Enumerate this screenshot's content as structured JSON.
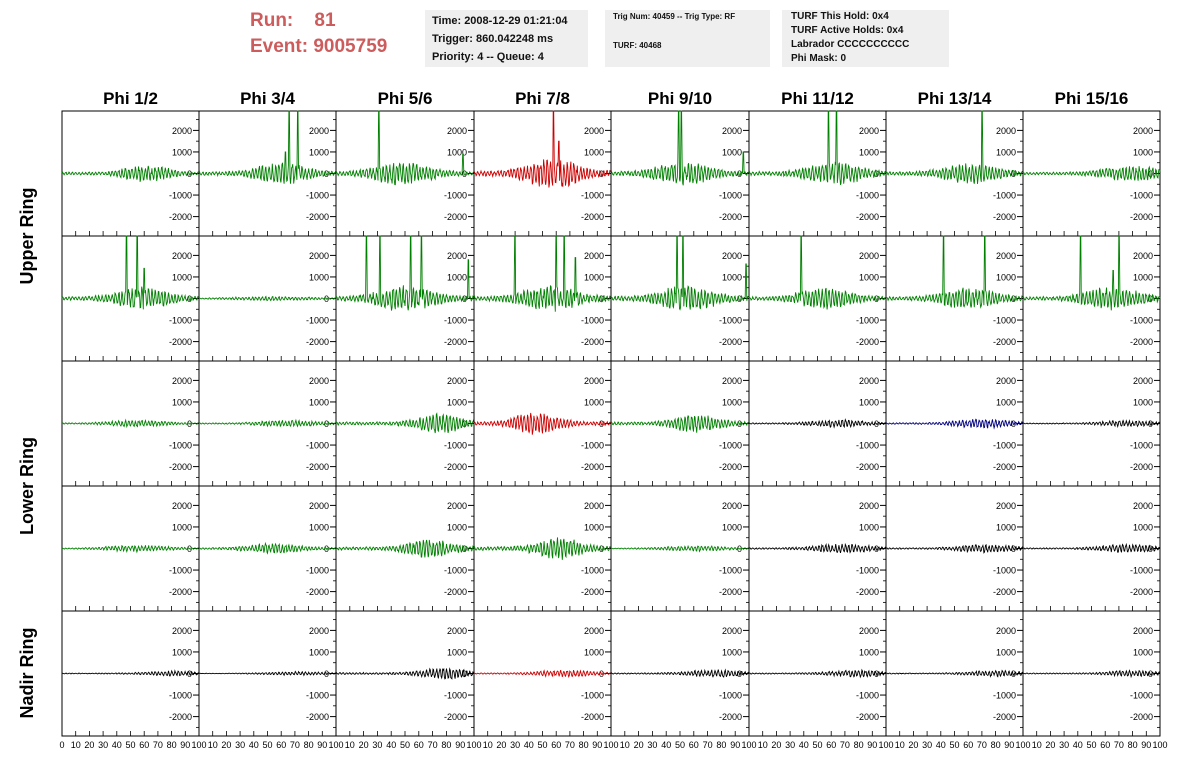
{
  "header": {
    "run_label": "Run:",
    "run_value": "81",
    "event_label": "Event:",
    "event_value": "9005759",
    "time_line": "Time: 2008-12-29 01:21:04",
    "trigger_line": "Trigger: 860.042248 ms",
    "priority_line": "Priority: 4 -- Queue: 4",
    "trig_num_line": "Trig Num: 40459 -- Trig Type: RF",
    "turf_line": "TURF: 40468",
    "turf_hold_line": "TURF This Hold: 0x4",
    "turf_active_line": "TURF Active Holds: 0x4",
    "labrador_line": "Labrador CCCCCCCCCC",
    "phi_mask_line": "Phi Mask: 0"
  },
  "chart_data": {
    "type": "line",
    "columns": [
      "Phi 1/2",
      "Phi 3/4",
      "Phi 5/6",
      "Phi 7/8",
      "Phi 9/10",
      "Phi 11/12",
      "Phi 13/14",
      "Phi 15/16"
    ],
    "row_groups": [
      "Upper Ring",
      "Lower Ring",
      "Nadir Ring"
    ],
    "x_ticks": [
      0,
      10,
      20,
      30,
      40,
      50,
      60,
      70,
      80,
      90,
      100
    ],
    "x_tick_labels_first": "0",
    "x_range": [
      0,
      100
    ],
    "y_ticks": [
      2000,
      1000,
      0,
      -1000,
      -2000
    ],
    "y_range": [
      -2900,
      2900
    ],
    "colors": {
      "green": "#008000",
      "red": "#cc0000",
      "black": "#000000",
      "blue": "#000080"
    },
    "panels": [
      [
        {
          "color": "green",
          "amp": 380,
          "center": 62,
          "width": 32,
          "spikes": []
        },
        {
          "color": "green",
          "amp": 480,
          "center": 60,
          "width": 36,
          "spikes": [
            [
              66,
              2900
            ],
            [
              72,
              2900
            ],
            [
              63,
              1000
            ]
          ]
        },
        {
          "color": "green",
          "amp": 520,
          "center": 48,
          "width": 40,
          "spikes": [
            [
              31,
              2900
            ],
            [
              92,
              900
            ]
          ]
        },
        {
          "color": "red",
          "amp": 700,
          "center": 58,
          "width": 36,
          "spikes": [
            [
              58,
              2900
            ],
            [
              62,
              1500
            ]
          ]
        },
        {
          "color": "green",
          "amp": 520,
          "center": 52,
          "width": 38,
          "spikes": [
            [
              49,
              2900
            ],
            [
              51,
              2900
            ],
            [
              96,
              1000
            ]
          ]
        },
        {
          "color": "green",
          "amp": 520,
          "center": 62,
          "width": 38,
          "spikes": [
            [
              58,
              2900
            ],
            [
              64,
              2900
            ]
          ]
        },
        {
          "color": "green",
          "amp": 440,
          "center": 62,
          "width": 40,
          "spikes": [
            [
              70,
              2900
            ]
          ]
        },
        {
          "color": "green",
          "amp": 330,
          "center": 80,
          "width": 45,
          "spikes": []
        }
      ],
      [
        {
          "color": "green",
          "amp": 520,
          "center": 58,
          "width": 36,
          "spikes": [
            [
              47,
              2900
            ],
            [
              55,
              2900
            ],
            [
              60,
              1400
            ]
          ]
        },
        {
          "color": "green",
          "amp": 90,
          "center": 55,
          "width": 60,
          "spikes": []
        },
        {
          "color": "green",
          "amp": 560,
          "center": 50,
          "width": 40,
          "spikes": [
            [
              22,
              2900
            ],
            [
              32,
              2900
            ],
            [
              54,
              2900
            ],
            [
              62,
              2900
            ],
            [
              96,
              1800
            ]
          ]
        },
        {
          "color": "green",
          "amp": 560,
          "center": 55,
          "width": 40,
          "spikes": [
            [
              30,
              2900
            ],
            [
              60,
              2900
            ],
            [
              66,
              2900
            ],
            [
              74,
              1900
            ]
          ]
        },
        {
          "color": "green",
          "amp": 560,
          "center": 55,
          "width": 40,
          "spikes": [
            [
              48,
              2900
            ],
            [
              52,
              2900
            ],
            [
              98,
              1600
            ]
          ]
        },
        {
          "color": "green",
          "amp": 460,
          "center": 55,
          "width": 40,
          "spikes": [
            [
              38,
              2900
            ]
          ]
        },
        {
          "color": "green",
          "amp": 460,
          "center": 60,
          "width": 40,
          "spikes": [
            [
              42,
              2900
            ],
            [
              72,
              2900
            ]
          ]
        },
        {
          "color": "green",
          "amp": 480,
          "center": 65,
          "width": 40,
          "spikes": [
            [
              42,
              2900
            ],
            [
              70,
              2900
            ],
            [
              66,
              1300
            ]
          ]
        }
      ],
      [
        {
          "color": "green",
          "amp": 140,
          "center": 55,
          "width": 45,
          "spikes": []
        },
        {
          "color": "green",
          "amp": 140,
          "center": 65,
          "width": 45,
          "spikes": []
        },
        {
          "color": "green",
          "amp": 420,
          "center": 75,
          "width": 32,
          "spikes": []
        },
        {
          "color": "red",
          "amp": 480,
          "center": 45,
          "width": 32,
          "spikes": []
        },
        {
          "color": "green",
          "amp": 400,
          "center": 62,
          "width": 32,
          "spikes": []
        },
        {
          "color": "black",
          "amp": 160,
          "center": 65,
          "width": 40,
          "spikes": []
        },
        {
          "color": "blue",
          "amp": 200,
          "center": 70,
          "width": 40,
          "spikes": []
        },
        {
          "color": "black",
          "amp": 130,
          "center": 75,
          "width": 40,
          "spikes": []
        }
      ],
      [
        {
          "color": "green",
          "amp": 140,
          "center": 55,
          "width": 45,
          "spikes": []
        },
        {
          "color": "green",
          "amp": 220,
          "center": 55,
          "width": 40,
          "spikes": []
        },
        {
          "color": "green",
          "amp": 420,
          "center": 68,
          "width": 32,
          "spikes": []
        },
        {
          "color": "green",
          "amp": 460,
          "center": 62,
          "width": 32,
          "spikes": []
        },
        {
          "color": "green",
          "amp": 120,
          "center": 60,
          "width": 45,
          "spikes": []
        },
        {
          "color": "black",
          "amp": 200,
          "center": 68,
          "width": 40,
          "spikes": []
        },
        {
          "color": "black",
          "amp": 180,
          "center": 72,
          "width": 40,
          "spikes": []
        },
        {
          "color": "black",
          "amp": 180,
          "center": 75,
          "width": 40,
          "spikes": []
        }
      ],
      [
        {
          "color": "black",
          "amp": 110,
          "center": 80,
          "width": 40,
          "spikes": []
        },
        {
          "color": "black",
          "amp": 80,
          "center": 70,
          "width": 45,
          "spikes": []
        },
        {
          "color": "black",
          "amp": 260,
          "center": 78,
          "width": 32,
          "spikes": []
        },
        {
          "color": "red",
          "amp": 150,
          "center": 65,
          "width": 40,
          "spikes": []
        },
        {
          "color": "black",
          "amp": 160,
          "center": 75,
          "width": 40,
          "spikes": []
        },
        {
          "color": "black",
          "amp": 150,
          "center": 78,
          "width": 40,
          "spikes": []
        },
        {
          "color": "black",
          "amp": 130,
          "center": 80,
          "width": 40,
          "spikes": []
        },
        {
          "color": "black",
          "amp": 130,
          "center": 80,
          "width": 40,
          "spikes": []
        }
      ]
    ]
  }
}
